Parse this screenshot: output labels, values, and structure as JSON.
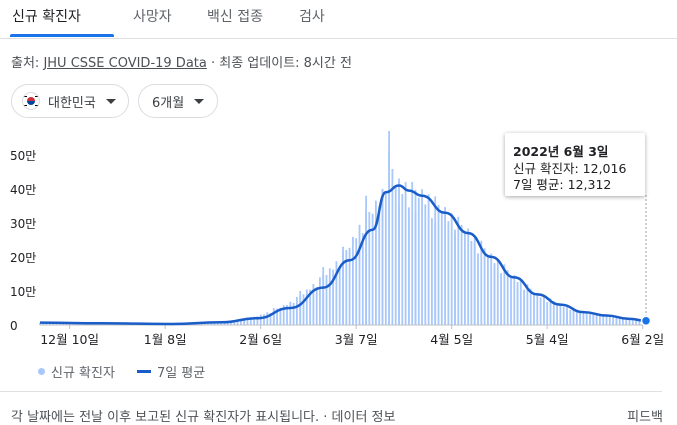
{
  "tabs": [
    "신규 확진자",
    "사망자",
    "백신 접종",
    "검사"
  ],
  "source": {
    "prefix": "출처: ",
    "link": "JHU CSSE COVID-19 Data",
    "suffix": " · 최종 업데이트: 8시간 전"
  },
  "filters": {
    "region": "대한민국",
    "period": "6개월"
  },
  "tooltip": {
    "date": "2022년 6월 3일",
    "new_cases": "신규 확진자: 12,016",
    "avg": "7일 평균: 12,312"
  },
  "legend": {
    "bars": "신규 확진자",
    "line": "7일 평균"
  },
  "footer": {
    "text": "각 날짜에는 전날 이후 보고된 신규 확진자가 표시됩니다. · ",
    "link": "데이터 정보",
    "feedback": "피드백"
  },
  "colors": {
    "bar": "#a8c7fa",
    "line": "#1a5dc8",
    "accent": "#1a73e8"
  },
  "chart_data": {
    "type": "bar",
    "title": "",
    "xlabel": "",
    "ylabel": "",
    "ylim": [
      0,
      570000
    ],
    "yticks": [
      0,
      100000,
      200000,
      300000,
      400000,
      500000
    ],
    "ytick_labels": [
      "0",
      "10만",
      "20만",
      "30만",
      "40만",
      "50만"
    ],
    "xticks": [
      "2021-12-10",
      "2022-01-08",
      "2022-02-06",
      "2022-03-07",
      "2022-04-05",
      "2022-05-04",
      "2022-06-02"
    ],
    "xtick_labels": [
      "12월 10일",
      "1월 8일",
      "2월 6일",
      "3월 7일",
      "4월 5일",
      "5월 4일",
      "6월 2일"
    ],
    "series": [
      {
        "name": "신규 확진자",
        "type": "bar",
        "color": "#a8c7fa",
        "x": [
          "2021-12-05",
          "2021-12-15",
          "2021-12-25",
          "2022-01-05",
          "2022-01-15",
          "2022-01-25",
          "2022-02-01",
          "2022-02-10",
          "2022-02-18",
          "2022-02-25",
          "2022-03-03",
          "2022-03-10",
          "2022-03-15",
          "2022-03-17",
          "2022-03-20",
          "2022-03-25",
          "2022-03-31",
          "2022-04-06",
          "2022-04-12",
          "2022-04-18",
          "2022-04-25",
          "2022-05-03",
          "2022-05-10",
          "2022-05-18",
          "2022-05-25",
          "2022-06-03"
        ],
        "values": [
          6000,
          7000,
          6500,
          4500,
          4000,
          8000,
          18000,
          50000,
          100000,
          170000,
          230000,
          380000,
          400000,
          570000,
          350000,
          330000,
          300000,
          280000,
          240000,
          170000,
          110000,
          80000,
          40000,
          30000,
          20000,
          12016
        ]
      },
      {
        "name": "7일 평균",
        "type": "line",
        "color": "#1a5dc8",
        "x": [
          "2021-12-01",
          "2021-12-20",
          "2022-01-10",
          "2022-01-25",
          "2022-02-05",
          "2022-02-15",
          "2022-02-25",
          "2022-03-05",
          "2022-03-12",
          "2022-03-16",
          "2022-03-20",
          "2022-03-23",
          "2022-03-27",
          "2022-04-03",
          "2022-04-10",
          "2022-04-17",
          "2022-04-24",
          "2022-05-01",
          "2022-05-08",
          "2022-05-15",
          "2022-05-22",
          "2022-05-29",
          "2022-06-03"
        ],
        "values": [
          7000,
          5000,
          3000,
          8000,
          20000,
          50000,
          110000,
          190000,
          280000,
          390000,
          410000,
          395000,
          380000,
          330000,
          270000,
          200000,
          140000,
          90000,
          60000,
          38000,
          28000,
          18000,
          12312
        ]
      }
    ],
    "legend": "bottom-left",
    "grid": false,
    "highlight": {
      "date": "2022-06-03",
      "new_cases": 12016,
      "avg": 12312
    }
  }
}
